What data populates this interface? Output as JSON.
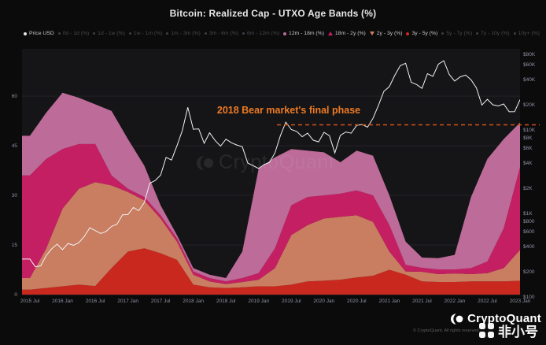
{
  "title": "Bitcoin: Realized Cap - UTXO Age Bands (%)",
  "legend": {
    "items": [
      {
        "label": "Price USD",
        "active": true,
        "marker": "dot",
        "color": "#e8e8e8"
      },
      {
        "label": "0d - 1d (%)",
        "active": false,
        "marker": "dot",
        "color": "#3e3e44"
      },
      {
        "label": "1d - 1w (%)",
        "active": false,
        "marker": "dot",
        "color": "#3e3e44"
      },
      {
        "label": "1w - 1m (%)",
        "active": false,
        "marker": "dot",
        "color": "#3e3e44"
      },
      {
        "label": "1m - 3m (%)",
        "active": false,
        "marker": "dot",
        "color": "#3e3e44"
      },
      {
        "label": "3m - 6m (%)",
        "active": false,
        "marker": "dot",
        "color": "#3e3e44"
      },
      {
        "label": "6m - 12m (%)",
        "active": false,
        "marker": "dot",
        "color": "#3e3e44"
      },
      {
        "label": "12m - 18m (%)",
        "active": true,
        "marker": "dot",
        "color": "#bd6b99"
      },
      {
        "label": "18m - 2y (%)",
        "active": true,
        "marker": "tri-up",
        "color": "#c51f63"
      },
      {
        "label": "2y - 3y (%)",
        "active": true,
        "marker": "tri-down",
        "color": "#c97d61"
      },
      {
        "label": "3y - 5y (%)",
        "active": true,
        "marker": "dot",
        "color": "#c8281d"
      },
      {
        "label": "5y - 7y (%)",
        "active": false,
        "marker": "dot",
        "color": "#3e3e44"
      },
      {
        "label": "7y - 10y (%)",
        "active": false,
        "marker": "dot",
        "color": "#3e3e44"
      },
      {
        "label": "10y+ (%)",
        "active": false,
        "marker": "dot",
        "color": "#3e3e44"
      }
    ]
  },
  "annotation": {
    "text": "2018 Bear market's final phase",
    "text_color": "#ee7a25",
    "line_color": "#d4521a",
    "line_level_pct": 51.3
  },
  "watermark_text": "CryptoQuant",
  "footer": {
    "brand": "CryptoQuant",
    "copyright": "© CryptoQuant. All rights reserved.",
    "overlay_brand": "非小号"
  },
  "colors": {
    "background": "#0b0b0c",
    "plot_background": "#151517",
    "grid": "#242428",
    "axis_text": "#8e93a4",
    "price_line": "#f2f2f2"
  },
  "chart_data": {
    "type": "area",
    "stacked": true,
    "title": "Bitcoin: Realized Cap - UTXO Age Bands (%)",
    "legend_position": "top",
    "grid": true,
    "left_axis_ticks_pct": [
      0,
      15,
      30,
      45,
      60
    ],
    "ylim_left": [
      0,
      74
    ],
    "right_axis_log": true,
    "right_axis_ticks_usd": [
      100,
      200,
      400,
      600,
      800,
      1000,
      2000,
      4000,
      6000,
      8000,
      10000,
      20000,
      40000,
      60000,
      80000
    ],
    "right_axis_tick_labels": [
      "$100",
      "$200",
      "$400",
      "$600",
      "$800",
      "$1K",
      "$2K",
      "$4K",
      "$6K",
      "$8K",
      "$10K",
      "$20K",
      "$40K",
      "$60K",
      "$80K"
    ],
    "x_tick_labels": [
      "2015 Jul",
      "2016 Jan",
      "2016 Jul",
      "2017 Jan",
      "2017 Jul",
      "2018 Jan",
      "2018 Jul",
      "2019 Jan",
      "2019 Jul",
      "2020 Jan",
      "2020 Jul",
      "2021 Jan",
      "2021 Jul",
      "2022 Jan",
      "2022 Jul",
      "2023 Jan"
    ],
    "categories_quarterly": [
      "2015-07",
      "2015-10",
      "2016-01",
      "2016-04",
      "2016-07",
      "2016-10",
      "2017-01",
      "2017-04",
      "2017-07",
      "2017-10",
      "2018-01",
      "2018-04",
      "2018-07",
      "2018-10",
      "2019-01",
      "2019-04",
      "2019-07",
      "2019-10",
      "2020-01",
      "2020-04",
      "2020-07",
      "2020-10",
      "2021-01",
      "2021-04",
      "2021-07",
      "2021-10",
      "2022-01",
      "2022-04",
      "2022-07",
      "2022-10",
      "2023-01"
    ],
    "series": [
      {
        "name": "3y - 5y (%)",
        "color": "#c8281d",
        "values": [
          1.5,
          2,
          2.5,
          3,
          2.6,
          8,
          13,
          14,
          12.5,
          10.5,
          3,
          2.2,
          2,
          2.2,
          2.5,
          2.5,
          3,
          4,
          4.2,
          4.5,
          5.2,
          5.7,
          7.5,
          6,
          4,
          3.8,
          3.8,
          4,
          4,
          4,
          4.2
        ]
      },
      {
        "name": "2y - 3y (%)",
        "color": "#c97d61",
        "values": [
          3.5,
          12,
          23.5,
          29,
          31.4,
          25,
          18,
          14.5,
          10.5,
          5.5,
          3,
          1.8,
          1.2,
          1.6,
          2,
          5.5,
          15,
          17,
          18.8,
          19,
          18.8,
          16.3,
          5.5,
          1,
          2.9,
          2.4,
          2.6,
          2.2,
          2.5,
          4,
          9.3
        ]
      },
      {
        "name": "18m - 2y (%)",
        "color": "#c51f63",
        "values": [
          31,
          27,
          18,
          13.5,
          11.5,
          3,
          1,
          1,
          1,
          1,
          1,
          1,
          0.8,
          1.2,
          2,
          6,
          9,
          8.5,
          7,
          7,
          7.5,
          8,
          8,
          2,
          1.2,
          1.4,
          1.2,
          1.8,
          3.5,
          12,
          25
        ]
      },
      {
        "name": "12m - 18m (%)",
        "color": "#bd6b99",
        "values": [
          12,
          14,
          17,
          14,
          12,
          19.5,
          15,
          9.5,
          3,
          1,
          1,
          1,
          1,
          8,
          31.5,
          27.5,
          17,
          14,
          13,
          9.5,
          12,
          12,
          9,
          7,
          3.1,
          3.4,
          4.4,
          21.5,
          31,
          27,
          13.5
        ]
      }
    ],
    "price_series": {
      "name": "Price USD",
      "color": "#f2f2f2",
      "scale": "log",
      "x_step_months": 1,
      "x_start": "2015-07",
      "values_usd": [
        284,
        230,
        236,
        314,
        377,
        430,
        368,
        437,
        416,
        448,
        531,
        673,
        624,
        575,
        610,
        700,
        745,
        963,
        970,
        1180,
        1080,
        1350,
        2300,
        2480,
        2875,
        4700,
        4360,
        6450,
        9900,
        18700,
        10200,
        10300,
        6930,
        9240,
        7490,
        6400,
        7750,
        7030,
        6600,
        6300,
        4020,
        3740,
        3460,
        3850,
        4100,
        5320,
        8550,
        12400,
        10100,
        9600,
        8300,
        9150,
        7550,
        7200,
        9350,
        8550,
        5300,
        8620,
        9450,
        9140,
        11350,
        11650,
        10780,
        13800,
        19700,
        29000,
        33100,
        45200,
        58800,
        63000,
        37300,
        35000,
        31500,
        47150,
        43800,
        61300,
        67500,
        46200,
        38500,
        43200,
        45500,
        40000,
        31800,
        19900,
        23300,
        20050,
        19400,
        20500,
        16500,
        16550,
        23100
      ]
    }
  }
}
